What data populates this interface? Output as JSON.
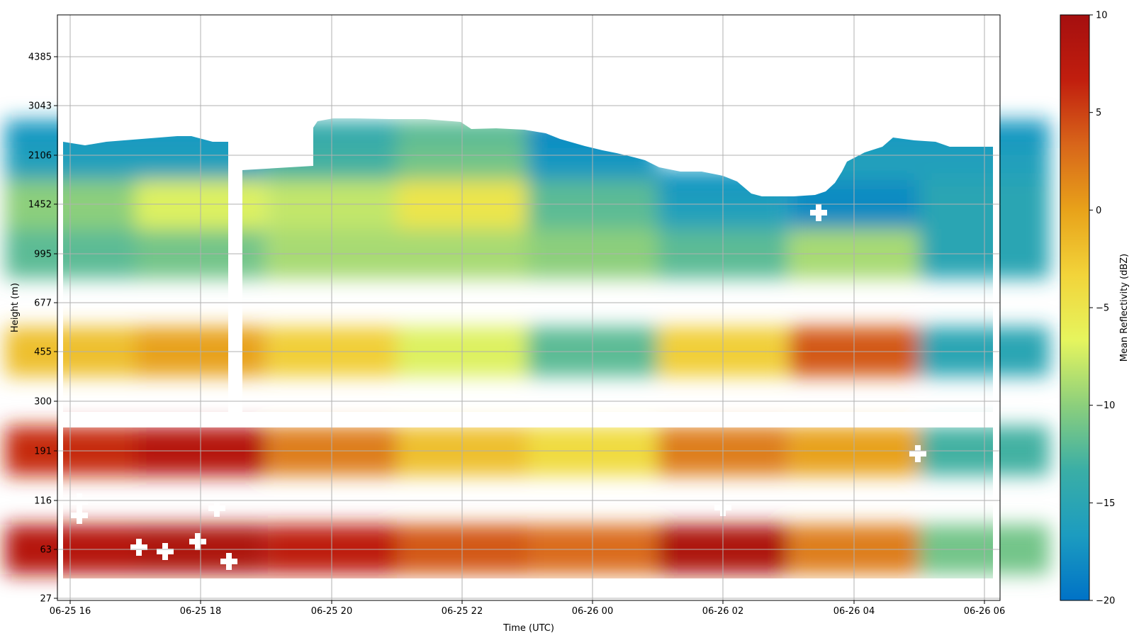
{
  "chart_data": {
    "type": "heatmap",
    "title": "",
    "xlabel": "Time (UTC)",
    "ylabel": "Height (m)",
    "x_ticks": [
      "06-25 16",
      "06-25 18",
      "06-25 20",
      "06-25 22",
      "06-26 00",
      "06-26 02",
      "06-26 04",
      "06-26 06"
    ],
    "y_ticks": [
      "27",
      "63",
      "116",
      "191",
      "300",
      "455",
      "677",
      "995",
      "1452",
      "2106",
      "3043",
      "4385"
    ],
    "x_range": [
      "06-25 15:48",
      "06-26 06:12"
    ],
    "grid": true,
    "colorbar": {
      "label": "Mean Reflectivity (dBZ)",
      "min": -20,
      "max": 10,
      "ticks": [
        "10",
        "5",
        "0",
        "−5",
        "−10",
        "−15",
        "−20"
      ],
      "colormap": [
        "#0072c6",
        "#1c9cc0",
        "#3aaea6",
        "#8ccf7c",
        "#e6f55e",
        "#f2d43a",
        "#e8a21a",
        "#d8661a",
        "#c11e0e",
        "#a50f0f"
      ]
    },
    "reflectivity_profiles_dBZ": [
      {
        "time": "06-25 16",
        "by_height": [
          {
            "m": 63,
            "dBZ": 8
          },
          {
            "m": 191,
            "dBZ": 6
          },
          {
            "m": 455,
            "dBZ": -2
          },
          {
            "m": 995,
            "dBZ": -12
          },
          {
            "m": 1452,
            "dBZ": -10
          },
          {
            "m": 2106,
            "dBZ": -16
          }
        ]
      },
      {
        "time": "06-25 18",
        "by_height": [
          {
            "m": 63,
            "dBZ": 9
          },
          {
            "m": 191,
            "dBZ": 8
          },
          {
            "m": 455,
            "dBZ": 0
          },
          {
            "m": 995,
            "dBZ": -11
          },
          {
            "m": 1452,
            "dBZ": -7
          },
          {
            "m": 2106,
            "dBZ": -16
          }
        ]
      },
      {
        "time": "06-25 20",
        "by_height": [
          {
            "m": 63,
            "dBZ": 7
          },
          {
            "m": 191,
            "dBZ": 2
          },
          {
            "m": 455,
            "dBZ": -3
          },
          {
            "m": 995,
            "dBZ": -9
          },
          {
            "m": 1452,
            "dBZ": -8
          },
          {
            "m": 2106,
            "dBZ": -13
          }
        ]
      },
      {
        "time": "06-25 22",
        "by_height": [
          {
            "m": 63,
            "dBZ": 4
          },
          {
            "m": 191,
            "dBZ": -2
          },
          {
            "m": 455,
            "dBZ": -7
          },
          {
            "m": 995,
            "dBZ": -9
          },
          {
            "m": 1452,
            "dBZ": -5
          },
          {
            "m": 2106,
            "dBZ": -11
          }
        ]
      },
      {
        "time": "06-26 00",
        "by_height": [
          {
            "m": 63,
            "dBZ": 3
          },
          {
            "m": 191,
            "dBZ": -4
          },
          {
            "m": 455,
            "dBZ": -12
          },
          {
            "m": 995,
            "dBZ": -10
          },
          {
            "m": 1452,
            "dBZ": -12
          },
          {
            "m": 2106,
            "dBZ": -17
          }
        ]
      },
      {
        "time": "06-26 02",
        "by_height": [
          {
            "m": 63,
            "dBZ": 9
          },
          {
            "m": 191,
            "dBZ": 2
          },
          {
            "m": 455,
            "dBZ": -3
          },
          {
            "m": 995,
            "dBZ": -12
          },
          {
            "m": 1452,
            "dBZ": -16
          }
        ]
      },
      {
        "time": "06-26 04",
        "by_height": [
          {
            "m": 63,
            "dBZ": 2
          },
          {
            "m": 191,
            "dBZ": 0
          },
          {
            "m": 455,
            "dBZ": 4
          },
          {
            "m": 995,
            "dBZ": -9
          },
          {
            "m": 1452,
            "dBZ": -18
          },
          {
            "m": 2106,
            "dBZ": -16
          }
        ]
      },
      {
        "time": "06-26 06",
        "by_height": [
          {
            "m": 63,
            "dBZ": -11
          },
          {
            "m": 191,
            "dBZ": -13
          },
          {
            "m": 455,
            "dBZ": -15
          },
          {
            "m": 995,
            "dBZ": -15
          },
          {
            "m": 1452,
            "dBZ": -15
          },
          {
            "m": 2106,
            "dBZ": -16
          }
        ]
      }
    ]
  }
}
